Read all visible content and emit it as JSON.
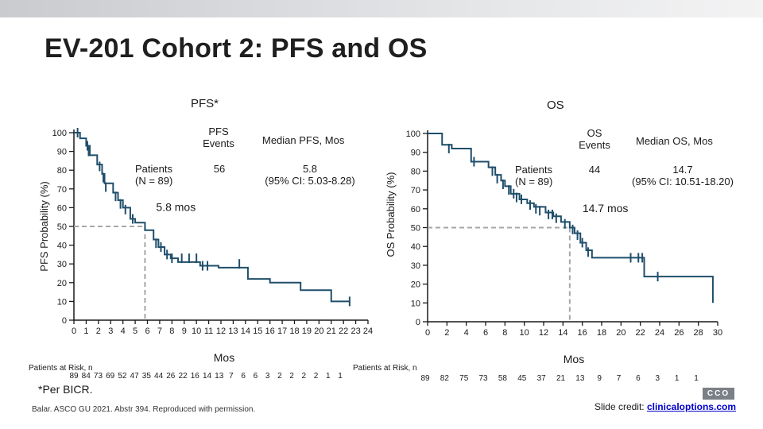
{
  "slide": {
    "title": "EV-201 Cohort 2: PFS and OS",
    "footnote": "*Per BICR.",
    "citation": "Balar. ASCO GU 2021. Abstr 394. Reproduced with permission.",
    "credit_prefix": "Slide credit: ",
    "credit_link": "clinicaloptions.com",
    "logo_text": "CCO",
    "colors": {
      "curve": "#1f4e6b",
      "reference": "#a6a6a6",
      "text": "#1a1a1a"
    }
  },
  "chart_data": [
    {
      "type": "line",
      "panel_title": "PFS*",
      "xlabel": "Mos",
      "ylabel": "PFS Probability (%)",
      "xlim": [
        0,
        24
      ],
      "ylim": [
        0,
        100
      ],
      "x_ticks": [
        "0",
        "1",
        "2",
        "3",
        "4",
        "5",
        "6",
        "7",
        "8",
        "9",
        "10",
        "11",
        "12",
        "13",
        "14",
        "15",
        "16",
        "17",
        "18",
        "19",
        "20",
        "21",
        "22",
        "23",
        "24"
      ],
      "y_ticks": [
        "0",
        "10",
        "20",
        "30",
        "40",
        "50",
        "60",
        "70",
        "80",
        "90",
        "100"
      ],
      "header_patients": "Patients\n(N = 89)",
      "header_events_label": "PFS\nEvents",
      "header_median_label": "Median PFS, Mos",
      "events": "56",
      "median_text": "5.8\n(95% CI: 5.03-8.28)",
      "median_annotation": "5.8 mos",
      "median_x": 5.8,
      "at_risk_label": "Patients at Risk, n",
      "at_risk": [
        "89",
        "84",
        "73",
        "69",
        "52",
        "47",
        "35",
        "44",
        "26",
        "22",
        "16",
        "14",
        "13",
        "7",
        "6",
        "6",
        "3",
        "2",
        "2",
        "2",
        "2",
        "1",
        "1"
      ],
      "steps": [
        [
          0,
          100
        ],
        [
          0.5,
          97
        ],
        [
          1.0,
          93
        ],
        [
          1.3,
          88
        ],
        [
          1.9,
          83
        ],
        [
          2.3,
          78
        ],
        [
          2.5,
          73
        ],
        [
          3.2,
          68
        ],
        [
          3.6,
          64
        ],
        [
          4.0,
          60
        ],
        [
          4.6,
          54
        ],
        [
          5.0,
          52
        ],
        [
          5.8,
          48
        ],
        [
          6.5,
          43
        ],
        [
          6.9,
          39
        ],
        [
          7.4,
          35
        ],
        [
          7.9,
          33
        ],
        [
          8.5,
          31
        ],
        [
          10.3,
          29
        ],
        [
          11.8,
          28
        ],
        [
          13.0,
          28
        ],
        [
          14.2,
          22
        ],
        [
          16.0,
          20
        ],
        [
          18.5,
          16
        ],
        [
          21.0,
          10
        ],
        [
          22.5,
          10
        ]
      ],
      "censor_marks": [
        [
          0.3,
          100
        ],
        [
          1.1,
          93
        ],
        [
          1.2,
          90
        ],
        [
          2.1,
          82
        ],
        [
          2.4,
          76
        ],
        [
          2.6,
          71
        ],
        [
          3.4,
          66
        ],
        [
          3.8,
          62
        ],
        [
          4.2,
          59
        ],
        [
          4.8,
          54
        ],
        [
          6.7,
          41
        ],
        [
          7.1,
          39
        ],
        [
          7.6,
          35
        ],
        [
          8.0,
          33
        ],
        [
          8.8,
          33
        ],
        [
          9.4,
          33
        ],
        [
          10.0,
          33
        ],
        [
          10.5,
          29
        ],
        [
          10.9,
          29
        ],
        [
          13.5,
          30
        ],
        [
          22.5,
          10
        ]
      ]
    },
    {
      "type": "line",
      "panel_title": "OS",
      "xlabel": "Mos",
      "ylabel": "OS Probability (%)",
      "xlim": [
        0,
        30
      ],
      "ylim": [
        0,
        100
      ],
      "x_ticks": [
        "0",
        "2",
        "4",
        "6",
        "8",
        "10",
        "12",
        "14",
        "16",
        "18",
        "20",
        "22",
        "24",
        "26",
        "28",
        "30"
      ],
      "y_ticks": [
        "0",
        "10",
        "20",
        "30",
        "40",
        "50",
        "60",
        "70",
        "80",
        "90",
        "100"
      ],
      "header_patients": "Patients\n(N = 89)",
      "header_events_label": "OS\nEvents",
      "header_median_label": "Median OS, Mos",
      "events": "44",
      "median_text": "14.7\n(95% CI: 10.51-18.20)",
      "median_annotation": "14.7 mos",
      "median_x": 14.7,
      "at_risk_label": "Patients at Risk, n",
      "at_risk": [
        "89",
        "82",
        "75",
        "73",
        "58",
        "45",
        "37",
        "21",
        "13",
        "9",
        "7",
        "6",
        "3",
        "1",
        "1"
      ],
      "steps": [
        [
          0,
          100
        ],
        [
          1.5,
          94
        ],
        [
          2.5,
          92
        ],
        [
          4.5,
          85
        ],
        [
          6.3,
          82
        ],
        [
          7.0,
          78
        ],
        [
          7.6,
          75
        ],
        [
          8.0,
          72
        ],
        [
          8.6,
          68
        ],
        [
          9.5,
          65
        ],
        [
          10.3,
          63
        ],
        [
          11.0,
          61
        ],
        [
          12.2,
          58
        ],
        [
          13.0,
          56
        ],
        [
          13.8,
          53
        ],
        [
          14.7,
          50
        ],
        [
          15.2,
          47
        ],
        [
          15.8,
          42
        ],
        [
          16.4,
          38
        ],
        [
          17.0,
          34
        ],
        [
          18.0,
          34
        ],
        [
          20.0,
          34
        ],
        [
          22.4,
          24
        ],
        [
          24.0,
          24
        ],
        [
          28.0,
          24
        ],
        [
          29.5,
          10
        ]
      ],
      "censor_marks": [
        [
          2.2,
          92
        ],
        [
          4.8,
          85
        ],
        [
          6.7,
          80
        ],
        [
          7.2,
          76
        ],
        [
          7.8,
          73
        ],
        [
          8.4,
          70
        ],
        [
          8.9,
          68
        ],
        [
          9.2,
          66
        ],
        [
          9.7,
          65
        ],
        [
          10.6,
          62
        ],
        [
          11.2,
          60
        ],
        [
          11.6,
          59
        ],
        [
          12.5,
          57
        ],
        [
          12.9,
          57
        ],
        [
          13.3,
          55
        ],
        [
          14.2,
          52
        ],
        [
          15.0,
          49
        ],
        [
          15.5,
          46
        ],
        [
          16.0,
          42
        ],
        [
          16.6,
          37
        ],
        [
          21.0,
          34
        ],
        [
          21.8,
          34
        ],
        [
          22.2,
          34
        ],
        [
          23.8,
          24
        ]
      ]
    }
  ]
}
